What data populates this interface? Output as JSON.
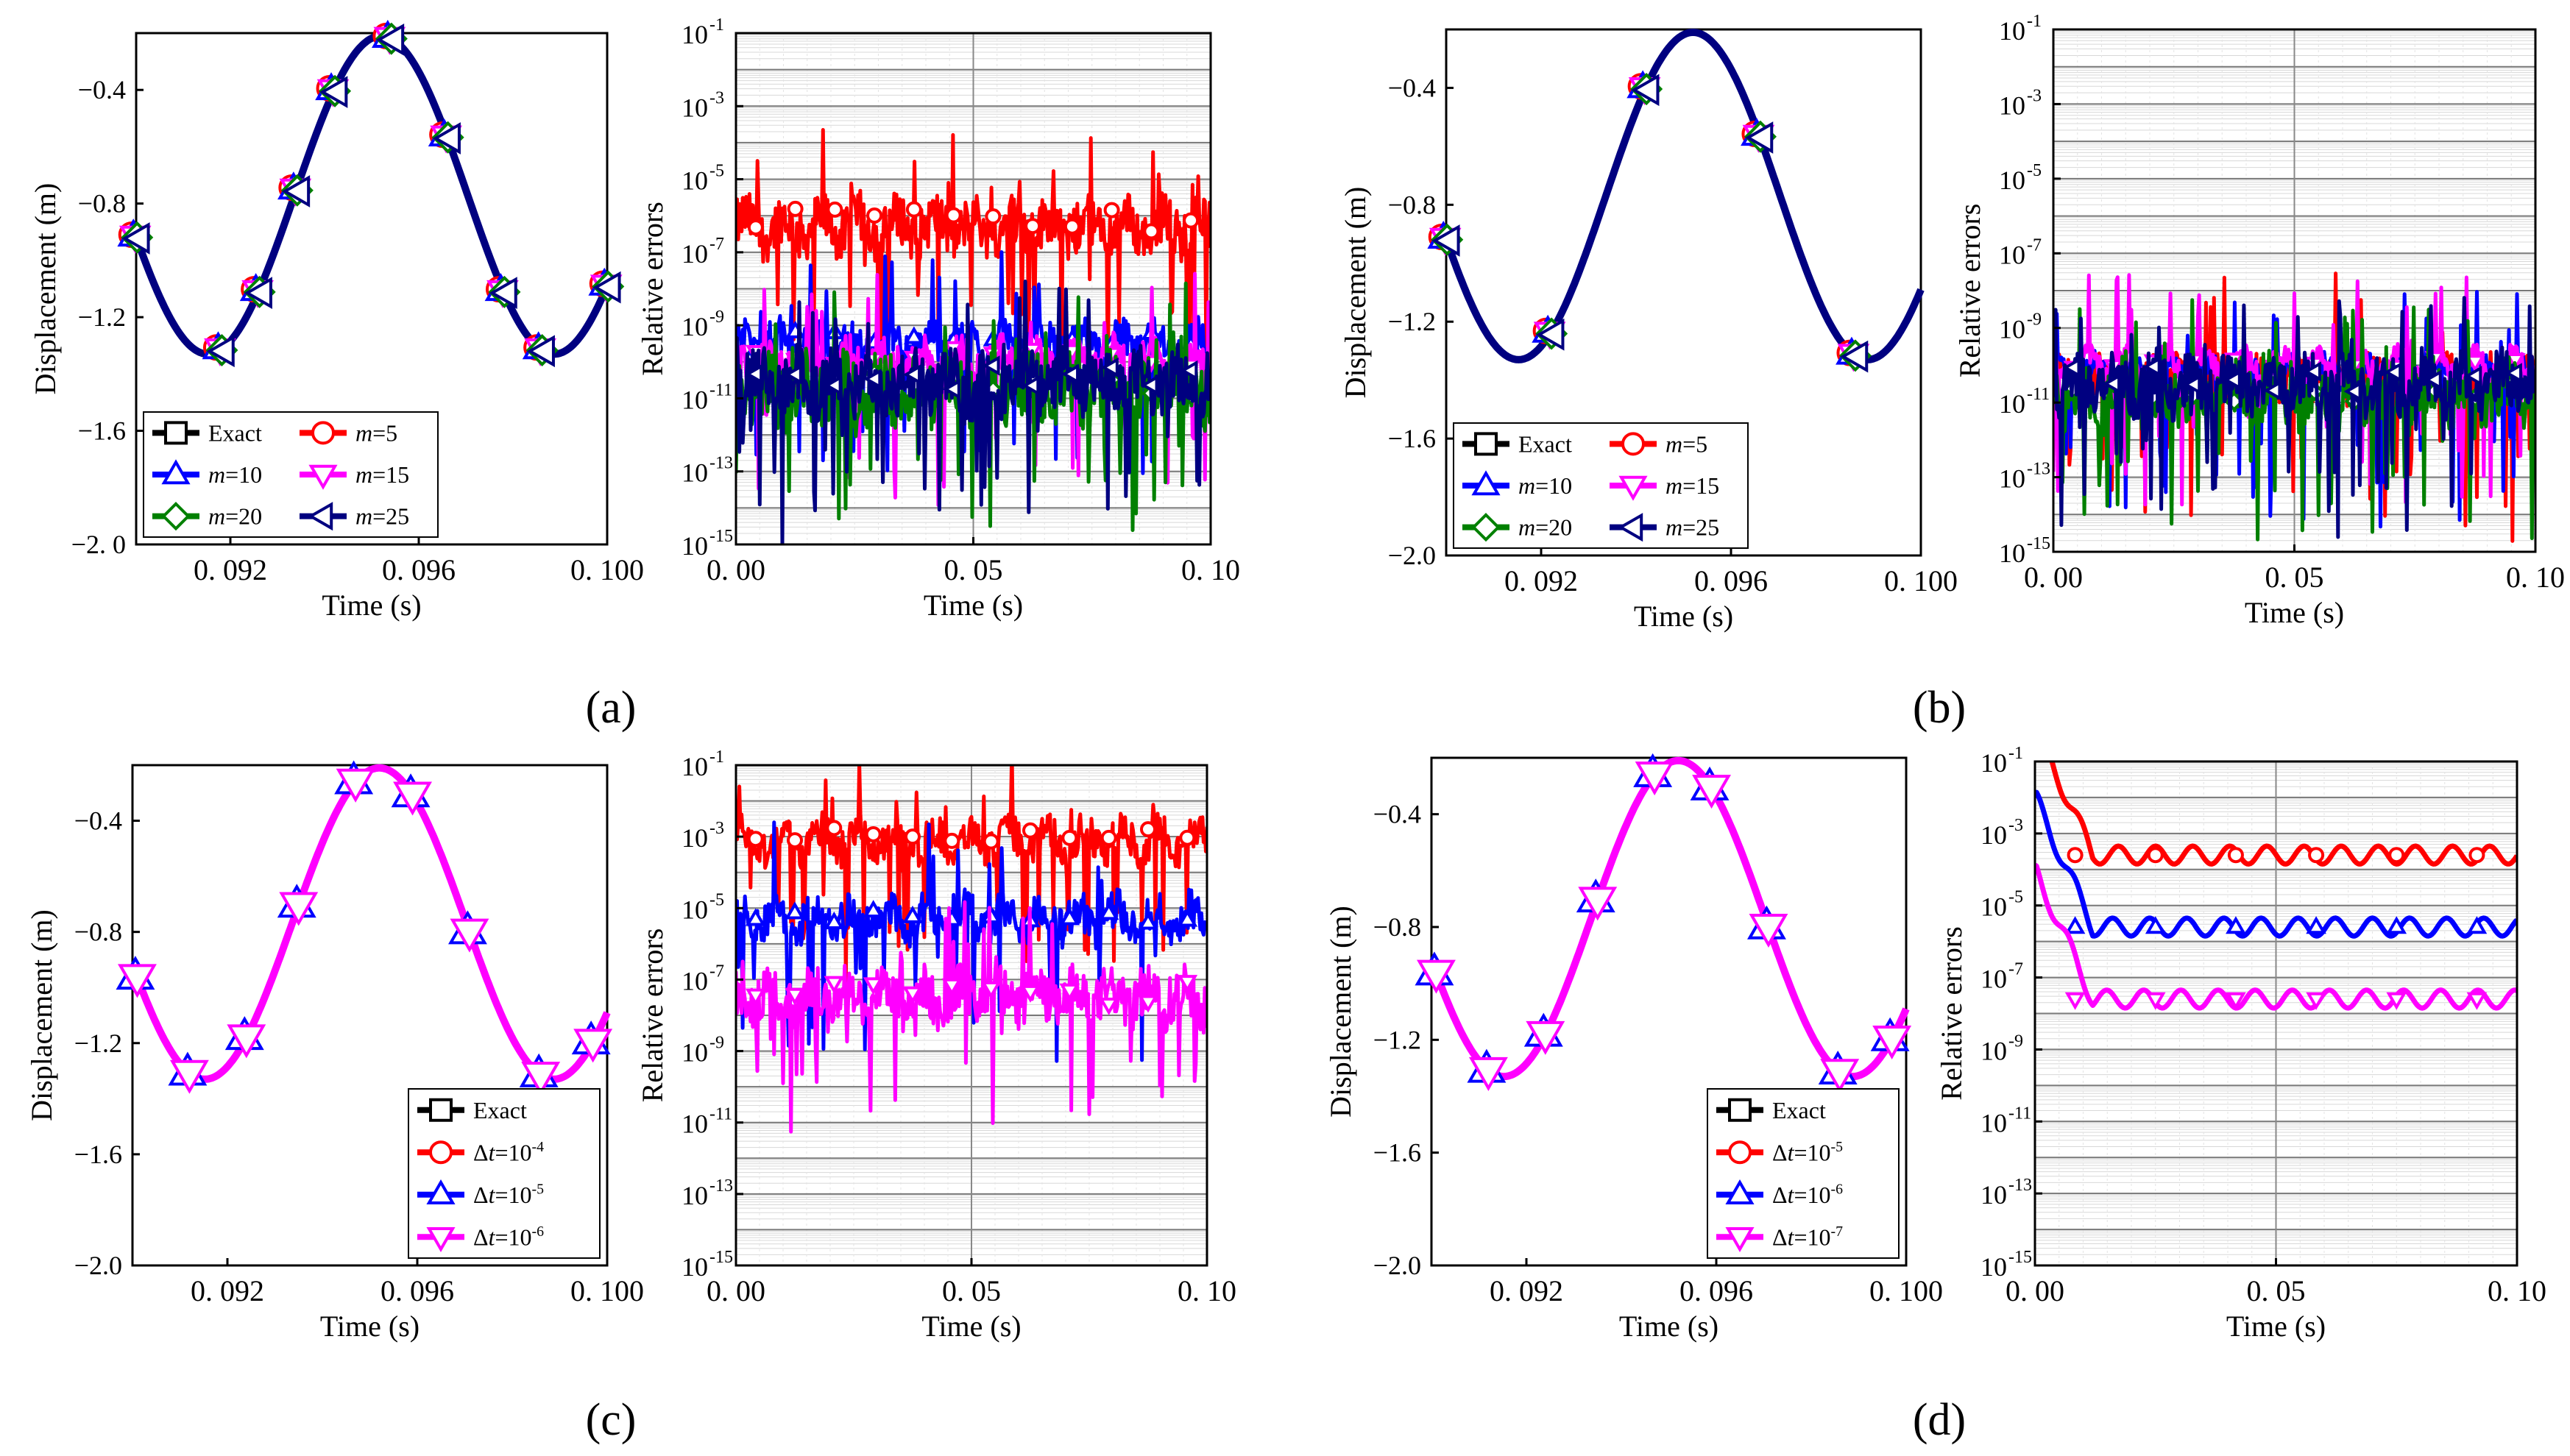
{
  "panel_labels": [
    "(a)",
    "(b)",
    "(c)",
    "(d)"
  ],
  "chart_data": [
    {
      "panel": "(a)",
      "type": "line",
      "title": "",
      "xlabel": "Time (s)",
      "ylabel": "Displacement (m)",
      "xlim": [
        0.09,
        0.1
      ],
      "ylim": [
        -2.0,
        -0.2
      ],
      "xticks": [
        0.092,
        0.096,
        0.1
      ],
      "xtick_labels": [
        "0. 092",
        "0. 096",
        "0. 100"
      ],
      "yticks": [
        -2.0,
        -1.6,
        -1.2,
        -0.8,
        -0.4
      ],
      "ytick_labels": [
        "−2. 0",
        "−1.6",
        "−1.2",
        "−0.8",
        "−0.4"
      ],
      "legend_position": "lower-left",
      "legend_cols": 2,
      "markers_x": [
        0.09,
        0.0918,
        0.0926,
        0.0934,
        0.0942,
        0.0954,
        0.0966,
        0.0978,
        0.0986,
        0.1
      ],
      "curve": {
        "mean": -0.77,
        "amplitude": 0.56,
        "period": 0.00735,
        "peak_time": 0.0952
      },
      "series": [
        {
          "name": "Exact",
          "color": "#000000",
          "marker": "square"
        },
        {
          "name": "m=5",
          "color": "#ff0000",
          "marker": "circle"
        },
        {
          "name": "m=10",
          "color": "#0000ff",
          "marker": "triangle-up"
        },
        {
          "name": "m=15",
          "color": "#ff00ff",
          "marker": "triangle-down"
        },
        {
          "name": "m=20",
          "color": "#008000",
          "marker": "diamond"
        },
        {
          "name": "m=25",
          "color": "#000080",
          "marker": "triangle-left"
        }
      ]
    },
    {
      "panel": "(a)",
      "type": "line",
      "yscale": "log",
      "title": "",
      "xlabel": "Time (s)",
      "ylabel": "Relative errors",
      "xlim": [
        0.0,
        0.1
      ],
      "ylim_exponent": [
        -15,
        -1
      ],
      "xticks": [
        0.0,
        0.05,
        0.1
      ],
      "xtick_labels": [
        "0. 00",
        "0. 05",
        "0. 10"
      ],
      "ytick_exponents": [
        -15,
        -13,
        -11,
        -9,
        -7,
        -5,
        -3,
        -1
      ],
      "grid": true,
      "style": "noisy",
      "series": [
        {
          "name": "m=5",
          "color": "#ff0000",
          "marker": "circle",
          "log10_level": -6.3,
          "spread": 0.7
        },
        {
          "name": "m=10",
          "color": "#0000ff",
          "marker": "triangle-up",
          "log10_level": -9.5,
          "spread": 0.5
        },
        {
          "name": "m=15",
          "color": "#ff00ff",
          "marker": "triangle-down",
          "log10_level": -10.0,
          "spread": 0.55
        },
        {
          "name": "m=20",
          "color": "#008000",
          "marker": "diamond",
          "log10_level": -10.8,
          "spread": 0.9
        },
        {
          "name": "m=25",
          "color": "#000080",
          "marker": "triangle-left",
          "log10_level": -10.6,
          "spread": 0.8
        }
      ]
    },
    {
      "panel": "(b)",
      "type": "line",
      "title": "",
      "xlabel": "Time (s)",
      "ylabel": "Displacement (m)",
      "xlim": [
        0.09,
        0.1
      ],
      "ylim": [
        -2.0,
        -0.2
      ],
      "xticks": [
        0.092,
        0.096,
        0.1
      ],
      "xtick_labels": [
        "0. 092",
        "0. 096",
        "0. 100"
      ],
      "yticks": [
        -2.0,
        -1.6,
        -1.2,
        -0.8,
        -0.4
      ],
      "ytick_labels": [
        "−2.0",
        "−1.6",
        "−1.2",
        "−0.8",
        "−0.4"
      ],
      "legend_position": "lower-left",
      "legend_cols": 2,
      "markers_x": [
        0.09,
        0.0922,
        0.0942,
        0.0966,
        0.0986
      ],
      "curve": {
        "mean": -0.77,
        "amplitude": 0.56,
        "period": 0.00735,
        "peak_time": 0.0952
      },
      "series": [
        {
          "name": "Exact",
          "color": "#000000",
          "marker": "square"
        },
        {
          "name": "m=5",
          "color": "#ff0000",
          "marker": "circle"
        },
        {
          "name": "m=10",
          "color": "#0000ff",
          "marker": "triangle-up"
        },
        {
          "name": "m=15",
          "color": "#ff00ff",
          "marker": "triangle-down"
        },
        {
          "name": "m=20",
          "color": "#008000",
          "marker": "diamond"
        },
        {
          "name": "m=25",
          "color": "#000080",
          "marker": "triangle-left"
        }
      ]
    },
    {
      "panel": "(b)",
      "type": "line",
      "yscale": "log",
      "title": "",
      "xlabel": "Time (s)",
      "ylabel": "Relative errors",
      "xlim": [
        0.0,
        0.1
      ],
      "ylim_exponent": [
        -15,
        -1
      ],
      "xticks": [
        0.0,
        0.05,
        0.1
      ],
      "xtick_labels": [
        "0. 00",
        "0. 05",
        "0. 10"
      ],
      "ytick_exponents": [
        -15,
        -13,
        -11,
        -9,
        -7,
        -5,
        -3,
        -1
      ],
      "grid": true,
      "style": "noisy",
      "series": [
        {
          "name": "m=5",
          "color": "#ff0000",
          "marker": "circle",
          "log10_level": -10.4,
          "spread": 0.5
        },
        {
          "name": "m=10",
          "color": "#0000ff",
          "marker": "triangle-up",
          "log10_level": -10.2,
          "spread": 0.3
        },
        {
          "name": "m=15",
          "color": "#ff00ff",
          "marker": "triangle-down",
          "log10_level": -10.0,
          "spread": 0.3
        },
        {
          "name": "m=20",
          "color": "#008000",
          "marker": "diamond",
          "log10_level": -10.8,
          "spread": 0.8
        },
        {
          "name": "m=25",
          "color": "#000080",
          "marker": "triangle-left",
          "log10_level": -10.5,
          "spread": 0.7
        }
      ]
    },
    {
      "panel": "(c)",
      "type": "line",
      "title": "",
      "xlabel": "Time (s)",
      "ylabel": "Displacement (m)",
      "xlim": [
        0.09,
        0.1
      ],
      "ylim": [
        -2.0,
        -0.2
      ],
      "xticks": [
        0.092,
        0.096,
        0.1
      ],
      "xtick_labels": [
        "0. 092",
        "0. 096",
        "0. 100"
      ],
      "yticks": [
        -2.0,
        -1.6,
        -1.2,
        -0.8,
        -0.4
      ],
      "ytick_labels": [
        "−2.0",
        "−1.6",
        "−1.2",
        "−0.8",
        "−0.4"
      ],
      "legend_position": "lower-right",
      "legend_cols": 1,
      "markers_x": [
        0.0901,
        0.0912,
        0.0924,
        0.0935,
        0.0947,
        0.0959,
        0.0971,
        0.0986,
        0.0997
      ],
      "curve": {
        "mean": -0.77,
        "amplitude": 0.56,
        "period": 0.00735,
        "peak_time": 0.0952
      },
      "series": [
        {
          "name": "Exact",
          "color": "#000000",
          "marker": "square"
        },
        {
          "name": "Δt=10^-4",
          "color": "#ff0000",
          "marker": "circle"
        },
        {
          "name": "Δt=10^-5",
          "color": "#0000ff",
          "marker": "triangle-up"
        },
        {
          "name": "Δt=10^-6",
          "color": "#ff00ff",
          "marker": "triangle-down"
        }
      ]
    },
    {
      "panel": "(c)",
      "type": "line",
      "yscale": "log",
      "title": "",
      "xlabel": "Time (s)",
      "ylabel": "Relative errors",
      "xlim": [
        0.0,
        0.1
      ],
      "ylim_exponent": [
        -15,
        -1
      ],
      "xticks": [
        0.0,
        0.05,
        0.1
      ],
      "xtick_labels": [
        "0. 00",
        "0. 05",
        "0. 10"
      ],
      "ytick_exponents": [
        -15,
        -13,
        -11,
        -9,
        -7,
        -5,
        -3,
        -1
      ],
      "grid": true,
      "style": "noisy",
      "series": [
        {
          "name": "Δt=10^-4",
          "color": "#ff0000",
          "marker": "circle",
          "log10_level": -3.1,
          "spread": 0.5
        },
        {
          "name": "Δt=10^-5",
          "color": "#0000ff",
          "marker": "triangle-up",
          "log10_level": -5.3,
          "spread": 0.55
        },
        {
          "name": "Δt=10^-6",
          "color": "#ff00ff",
          "marker": "triangle-down",
          "log10_level": -7.5,
          "spread": 0.7
        }
      ]
    },
    {
      "panel": "(d)",
      "type": "line",
      "title": "",
      "xlabel": "Time (s)",
      "ylabel": "Displacement (m)",
      "xlim": [
        0.09,
        0.1
      ],
      "ylim": [
        -2.0,
        -0.2
      ],
      "xticks": [
        0.092,
        0.096,
        0.1
      ],
      "xtick_labels": [
        "0. 092",
        "0. 096",
        "0. 100"
      ],
      "yticks": [
        -2.0,
        -1.6,
        -1.2,
        -0.8,
        -0.4
      ],
      "ytick_labels": [
        "−2.0",
        "−1.6",
        "−1.2",
        "−0.8",
        "−0.4"
      ],
      "legend_position": "lower-right",
      "legend_cols": 1,
      "markers_x": [
        0.0901,
        0.0912,
        0.0924,
        0.0935,
        0.0947,
        0.0959,
        0.0971,
        0.0986,
        0.0997
      ],
      "curve": {
        "mean": -0.77,
        "amplitude": 0.56,
        "period": 0.00735,
        "peak_time": 0.0952
      },
      "series": [
        {
          "name": "Exact",
          "color": "#000000",
          "marker": "square"
        },
        {
          "name": "Δt=10^-5",
          "color": "#ff0000",
          "marker": "circle"
        },
        {
          "name": "Δt=10^-6",
          "color": "#0000ff",
          "marker": "triangle-up"
        },
        {
          "name": "Δt=10^-7",
          "color": "#ff00ff",
          "marker": "triangle-down"
        }
      ]
    },
    {
      "panel": "(d)",
      "type": "line",
      "yscale": "log",
      "title": "",
      "xlabel": "Time (s)",
      "ylabel": "Relative errors",
      "xlim": [
        0.0,
        0.1
      ],
      "ylim_exponent": [
        -15,
        -1
      ],
      "xticks": [
        0.0,
        0.05,
        0.1
      ],
      "xtick_labels": [
        "0. 00",
        "0. 05",
        "0. 10"
      ],
      "ytick_exponents": [
        -15,
        -13,
        -11,
        -9,
        -7,
        -5,
        -3,
        -1
      ],
      "grid": true,
      "style": "smooth",
      "series": [
        {
          "name": "Δt=10^-5",
          "color": "#ff0000",
          "marker": "circle",
          "log10_level": -3.6,
          "spread": 0.25
        },
        {
          "name": "Δt=10^-6",
          "color": "#0000ff",
          "marker": "triangle-up",
          "log10_level": -5.6,
          "spread": 0.25
        },
        {
          "name": "Δt=10^-7",
          "color": "#ff00ff",
          "marker": "triangle-down",
          "log10_level": -7.6,
          "spread": 0.25
        }
      ]
    }
  ]
}
